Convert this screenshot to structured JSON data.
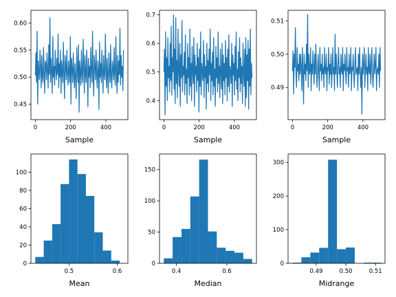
{
  "chart_data": [
    {
      "type": "line",
      "xlabel": "Sample",
      "ylabel": "",
      "xlim": [
        -25,
        525
      ],
      "ylim": [
        0.4213,
        0.6238
      ],
      "xticks": [
        {
          "v": 0,
          "label": "0"
        },
        {
          "v": 200,
          "label": "200"
        },
        {
          "v": 400,
          "label": "400"
        }
      ],
      "yticks": [
        {
          "v": 0.45,
          "label": "0.45"
        },
        {
          "v": 0.5,
          "label": "0.50"
        },
        {
          "v": 0.55,
          "label": "0.55"
        },
        {
          "v": 0.6,
          "label": "0.60"
        }
      ],
      "color": "#1f77b4",
      "series": [
        {
          "values": [
            0.503,
            0.545,
            0.49,
            0.585,
            0.45,
            0.53,
            0.51,
            0.495,
            0.55,
            0.52,
            0.48,
            0.54,
            0.5,
            0.49,
            0.555,
            0.51,
            0.47,
            0.53,
            0.525,
            0.495,
            0.545,
            0.51,
            0.48,
            0.56,
            0.505,
            0.61,
            0.49,
            0.535,
            0.51,
            0.47,
            0.575,
            0.5,
            0.52,
            0.485,
            0.55,
            0.515,
            0.495,
            0.535,
            0.505,
            0.58,
            0.48,
            0.525,
            0.5,
            0.55,
            0.47,
            0.53,
            0.51,
            0.49,
            0.565,
            0.505,
            0.46,
            0.54,
            0.52,
            0.495,
            0.55,
            0.505,
            0.485,
            0.53,
            0.51,
            0.49,
            0.575,
            0.45,
            0.535,
            0.515,
            0.49,
            0.545,
            0.505,
            0.48,
            0.525,
            0.5,
            0.46,
            0.555,
            0.515,
            0.49,
            0.56,
            0.435,
            0.53,
            0.51,
            0.485,
            0.55,
            0.505,
            0.49,
            0.57,
            0.52,
            0.47,
            0.54,
            0.505,
            0.49,
            0.55,
            0.515,
            0.445,
            0.535,
            0.5,
            0.52,
            0.48,
            0.555,
            0.51,
            0.49,
            0.585,
            0.5,
            0.465,
            0.54,
            0.52,
            0.495,
            0.55,
            0.505,
            0.48,
            0.53,
            0.515,
            0.44,
            0.565,
            0.5,
            0.525,
            0.49,
            0.55,
            0.51,
            0.47,
            0.54,
            0.505,
            0.495,
            0.58,
            0.515,
            0.48,
            0.535,
            0.5,
            0.47,
            0.545,
            0.51,
            0.49,
            0.56,
            0.5,
            0.48,
            0.53,
            0.515,
            0.495,
            0.555,
            0.505,
            0.485,
            0.575,
            0.51,
            0.47,
            0.54,
            0.49,
            0.53,
            0.505,
            0.59,
            0.485,
            0.54,
            0.5,
            0.52,
            0.475,
            0.55
          ]
        }
      ]
    },
    {
      "type": "line",
      "xlabel": "Sample",
      "ylabel": "",
      "xlim": [
        -25,
        525
      ],
      "ylim": [
        0.3335,
        0.7155
      ],
      "xticks": [
        {
          "v": 0,
          "label": "0"
        },
        {
          "v": 200,
          "label": "200"
        },
        {
          "v": 400,
          "label": "400"
        }
      ],
      "yticks": [
        {
          "v": 0.4,
          "label": "0.4"
        },
        {
          "v": 0.5,
          "label": "0.5"
        },
        {
          "v": 0.6,
          "label": "0.6"
        },
        {
          "v": 0.7,
          "label": "0.7"
        }
      ],
      "color": "#1f77b4",
      "series": [
        {
          "values": [
            0.5,
            0.58,
            0.35,
            0.64,
            0.45,
            0.55,
            0.4,
            0.62,
            0.48,
            0.52,
            0.43,
            0.6,
            0.47,
            0.66,
            0.42,
            0.55,
            0.5,
            0.7,
            0.44,
            0.58,
            0.39,
            0.69,
            0.46,
            0.54,
            0.41,
            0.65,
            0.5,
            0.45,
            0.6,
            0.38,
            0.56,
            0.48,
            0.68,
            0.43,
            0.52,
            0.49,
            0.57,
            0.42,
            0.63,
            0.46,
            0.51,
            0.39,
            0.6,
            0.48,
            0.55,
            0.42,
            0.65,
            0.45,
            0.53,
            0.4,
            0.59,
            0.5,
            0.46,
            0.62,
            0.38,
            0.56,
            0.49,
            0.52,
            0.43,
            0.6,
            0.47,
            0.55,
            0.36,
            0.58,
            0.45,
            0.64,
            0.42,
            0.53,
            0.5,
            0.47,
            0.61,
            0.41,
            0.56,
            0.48,
            0.52,
            0.37,
            0.6,
            0.46,
            0.54,
            0.43,
            0.58,
            0.49,
            0.65,
            0.4,
            0.53,
            0.47,
            0.57,
            0.42,
            0.62,
            0.45,
            0.51,
            0.38,
            0.59,
            0.48,
            0.55,
            0.43,
            0.64,
            0.46,
            0.52,
            0.41,
            0.58,
            0.5,
            0.44,
            0.6,
            0.39,
            0.56,
            0.47,
            0.53,
            0.42,
            0.61,
            0.48,
            0.55,
            0.4,
            0.58,
            0.45,
            0.63,
            0.43,
            0.52,
            0.5,
            0.46,
            0.6,
            0.38,
            0.56,
            0.49,
            0.53,
            0.42,
            0.59,
            0.47,
            0.64,
            0.44,
            0.51,
            0.4,
            0.57,
            0.48,
            0.62,
            0.43,
            0.55,
            0.46,
            0.52,
            0.39,
            0.6,
            0.5,
            0.45,
            0.58,
            0.38,
            0.62,
            0.41,
            0.56,
            0.47,
            0.61,
            0.37,
            0.58,
            0.45,
            0.65,
            0.42,
            0.53,
            0.48
          ]
        }
      ]
    },
    {
      "type": "line",
      "xlabel": "Sample",
      "ylabel": "",
      "xlim": [
        -25,
        525
      ],
      "ylim": [
        0.4803,
        0.5132
      ],
      "xticks": [
        {
          "v": 0,
          "label": "0"
        },
        {
          "v": 200,
          "label": "200"
        },
        {
          "v": 400,
          "label": "400"
        }
      ],
      "yticks": [
        {
          "v": 0.49,
          "label": "0.49"
        },
        {
          "v": 0.5,
          "label": "0.50"
        },
        {
          "v": 0.51,
          "label": "0.51"
        }
      ],
      "color": "#1f77b4",
      "series": [
        {
          "values": [
            0.495,
            0.501,
            0.488,
            0.5,
            0.496,
            0.508,
            0.494,
            0.49,
            0.502,
            0.495,
            0.497,
            0.492,
            0.5,
            0.494,
            0.5,
            0.496,
            0.489,
            0.502,
            0.495,
            0.485,
            0.5,
            0.494,
            0.497,
            0.492,
            0.503,
            0.495,
            0.512,
            0.49,
            0.5,
            0.494,
            0.495,
            0.502,
            0.489,
            0.497,
            0.494,
            0.501,
            0.496,
            0.491,
            0.5,
            0.494,
            0.503,
            0.496,
            0.49,
            0.495,
            0.5,
            0.494,
            0.489,
            0.502,
            0.495,
            0.497,
            0.492,
            0.5,
            0.494,
            0.496,
            0.49,
            0.502,
            0.495,
            0.494,
            0.5,
            0.489,
            0.496,
            0.495,
            0.502,
            0.491,
            0.497,
            0.494,
            0.5,
            0.49,
            0.495,
            0.502,
            0.494,
            0.496,
            0.489,
            0.506,
            0.494,
            0.5,
            0.495,
            0.49,
            0.497,
            0.502,
            0.494,
            0.496,
            0.49,
            0.5,
            0.495,
            0.494,
            0.502,
            0.489,
            0.497,
            0.495,
            0.5,
            0.494,
            0.491,
            0.502,
            0.495,
            0.496,
            0.49,
            0.5,
            0.494,
            0.495,
            0.502,
            0.489,
            0.496,
            0.495,
            0.5,
            0.494,
            0.49,
            0.497,
            0.502,
            0.494,
            0.495,
            0.496,
            0.489,
            0.5,
            0.494,
            0.502,
            0.495,
            0.49,
            0.496,
            0.482,
            0.5,
            0.494,
            0.497,
            0.502,
            0.49,
            0.495,
            0.5,
            0.494,
            0.496,
            0.489,
            0.502,
            0.495,
            0.494,
            0.5,
            0.491,
            0.496,
            0.502,
            0.494,
            0.49,
            0.495,
            0.5,
            0.494,
            0.497,
            0.502,
            0.489,
            0.495,
            0.496,
            0.494,
            0.5,
            0.49,
            0.502,
            0.495
          ]
        }
      ]
    },
    {
      "type": "bar",
      "xlabel": "Mean",
      "ylabel": "",
      "xlim": [
        0.421,
        0.622
      ],
      "ylim": [
        0,
        120
      ],
      "xticks": [
        {
          "v": 0.5,
          "label": "0.5"
        },
        {
          "v": 0.6,
          "label": "0.6"
        }
      ],
      "yticks": [
        {
          "v": 0,
          "label": "0"
        },
        {
          "v": 20,
          "label": "20"
        },
        {
          "v": 40,
          "label": "40"
        },
        {
          "v": 60,
          "label": "60"
        },
        {
          "v": 80,
          "label": "80"
        },
        {
          "v": 100,
          "label": "100"
        }
      ],
      "color": "#1f77b4",
      "bin_edges": [
        0.43,
        0.4475,
        0.465,
        0.4825,
        0.5,
        0.5175,
        0.535,
        0.5525,
        0.57,
        0.5875,
        0.605
      ],
      "values": [
        7,
        25,
        43,
        87,
        114,
        98,
        74,
        34,
        14,
        3
      ]
    },
    {
      "type": "bar",
      "xlabel": "Median",
      "ylabel": "",
      "xlim": [
        0.333,
        0.717
      ],
      "ylim": [
        0,
        175
      ],
      "xticks": [
        {
          "v": 0.4,
          "label": "0.4"
        },
        {
          "v": 0.6,
          "label": "0.6"
        }
      ],
      "yticks": [
        {
          "v": 0,
          "label": "0"
        },
        {
          "v": 50,
          "label": "50"
        },
        {
          "v": 100,
          "label": "100"
        },
        {
          "v": 150,
          "label": "150"
        }
      ],
      "color": "#1f77b4",
      "bin_edges": [
        0.35,
        0.385,
        0.42,
        0.455,
        0.49,
        0.525,
        0.56,
        0.595,
        0.63,
        0.665,
        0.7
      ],
      "values": [
        8,
        42,
        55,
        107,
        166,
        51,
        25,
        20,
        17,
        7
      ]
    },
    {
      "type": "bar",
      "xlabel": "Midrange",
      "ylabel": "",
      "xlim": [
        0.4805,
        0.5132
      ],
      "ylim": [
        0,
        325
      ],
      "xticks": [
        {
          "v": 0.49,
          "label": "0.49"
        },
        {
          "v": 0.5,
          "label": "0.50"
        },
        {
          "v": 0.51,
          "label": "0.51"
        }
      ],
      "yticks": [
        {
          "v": 0,
          "label": "0"
        },
        {
          "v": 100,
          "label": "100"
        },
        {
          "v": 200,
          "label": "200"
        },
        {
          "v": 300,
          "label": "300"
        }
      ],
      "color": "#1f77b4",
      "bin_edges": [
        0.482,
        0.485,
        0.488,
        0.491,
        0.494,
        0.497,
        0.5,
        0.503,
        0.506,
        0.509,
        0.512
      ],
      "values": [
        2,
        18,
        32,
        46,
        308,
        42,
        47,
        0,
        2,
        2
      ]
    }
  ]
}
